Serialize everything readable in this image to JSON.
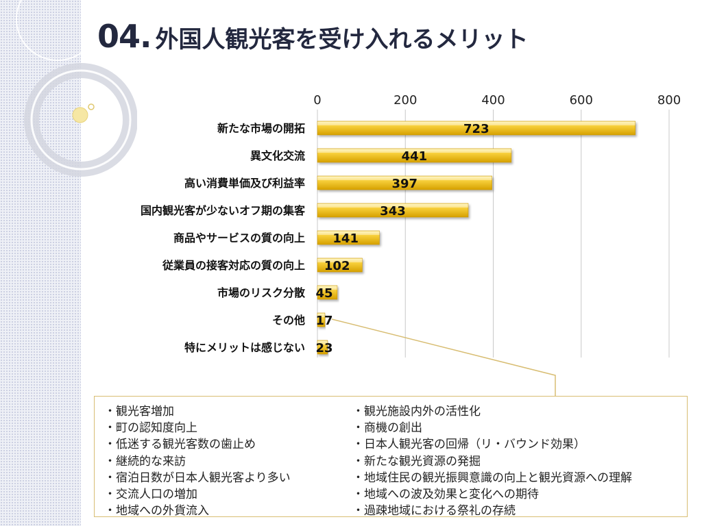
{
  "title": {
    "number": "04.",
    "text": "外国人観光客を受け入れるメリット"
  },
  "colors": {
    "bar_light": "#fde98a",
    "bar_mid": "#f5c21a",
    "bar_dark": "#d9a200",
    "grid": "#c8c8c8",
    "text": "#111111",
    "callout": "#d8bd72"
  },
  "chart_data": {
    "type": "bar",
    "orientation": "horizontal",
    "categories": [
      "新たな市場の開拓",
      "異文化交流",
      "高い消費単価及び利益率",
      "国内観光客が少ないオフ期の集客",
      "商品やサービスの質の向上",
      "従業員の接客対応の質の向上",
      "市場のリスク分散",
      "その他",
      "特にメリットは感じない"
    ],
    "values": [
      723,
      441,
      397,
      343,
      141,
      102,
      45,
      17,
      23
    ],
    "value_labels": [
      "723",
      "441",
      "397",
      "343",
      "141",
      "102",
      "45",
      "17",
      "23"
    ],
    "xlim": [
      0,
      800
    ],
    "ticks": [
      0,
      200,
      400,
      600,
      800
    ],
    "tick_labels": [
      "0",
      "200",
      "400",
      "600",
      "800"
    ],
    "grid": true,
    "axis_position": "top"
  },
  "notes": {
    "left": [
      "・観光客増加",
      "・町の認知度向上",
      "・低迷する観光客数の歯止め",
      "・継続的な来訪",
      "・宿泊日数が日本人観光客より多い",
      "・交流人口の増加",
      "・地域への外貨流入"
    ],
    "right": [
      "・観光施設内外の活性化",
      "・商機の創出",
      "・日本人観光客の回帰（リ・バウンド効果）",
      "・新たな観光資源の発掘",
      "・地域住民の観光振興意識の向上と観光資源への理解",
      "・地域への波及効果と変化への期待",
      "・過疎地域における祭礼の存続"
    ]
  }
}
